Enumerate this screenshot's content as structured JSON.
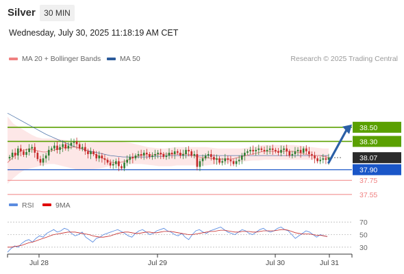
{
  "header": {
    "symbol": "Silver",
    "timeframe": "30 MIN",
    "datetime": "Wednesday, July 30, 2025 11:18:19 AM CET",
    "copyright": "Research © 2025 Trading Central"
  },
  "legend": {
    "price": [
      {
        "label": "MA 20 + Bollinger Bands",
        "color": "#f08080"
      },
      {
        "label": "MA 50",
        "color": "#2b5a9a"
      }
    ],
    "rsi": [
      {
        "label": "RSI",
        "color": "#5b8ce0"
      },
      {
        "label": "9MA",
        "color": "#e00000"
      }
    ]
  },
  "colors": {
    "up_candle": "#2e7d32",
    "down_candle": "#c62828",
    "resistance": "#5aa000",
    "pivot": "#1a56c8",
    "support": "#f08080",
    "last_price": "#2b2b2b",
    "arrow": "#2b5fa6",
    "band_fill": "#fde4e4"
  },
  "chart_data": [
    {
      "type": "candlestick",
      "title": "",
      "instrument": "Silver",
      "timeframe": "30 MIN",
      "x_labels": [
        "Jul 28",
        "Jul 29",
        "Jul 30",
        "Jul 31"
      ],
      "y_range": [
        37.5,
        38.75
      ],
      "grid": false,
      "levels": [
        {
          "value": 38.5,
          "label": "38.50",
          "role": "resistance"
        },
        {
          "value": 38.3,
          "label": "38.30",
          "role": "resistance"
        },
        {
          "value": 37.9,
          "label": "37.90",
          "role": "pivot"
        },
        {
          "value": 37.75,
          "label": "37.75",
          "role": "support"
        },
        {
          "value": 37.55,
          "label": "37.55",
          "role": "support"
        }
      ],
      "last_price": {
        "value": 38.07,
        "label": "38.07"
      },
      "forecast_arrow": {
        "from": 38.0,
        "to": 38.5
      },
      "ohlc_close": [
        38.08,
        38.14,
        38.1,
        38.2,
        38.16,
        38.11,
        38.15,
        38.2,
        38.22,
        38.14,
        38.05,
        38.0,
        38.06,
        38.1,
        38.18,
        38.2,
        38.24,
        38.18,
        38.22,
        38.26,
        38.2,
        38.24,
        38.28,
        38.3,
        38.26,
        38.2,
        38.22,
        38.16,
        38.12,
        38.16,
        38.12,
        38.06,
        38.1,
        38.06,
        38.04,
        38.0,
        37.96,
        37.98,
        38.02,
        37.95,
        37.92,
        38.0,
        38.04,
        38.08,
        38.06,
        38.1,
        38.12,
        38.1,
        38.14,
        38.12,
        38.08,
        38.1,
        38.12,
        38.14,
        38.12,
        38.08,
        38.1,
        38.14,
        38.12,
        38.16,
        38.14,
        38.1,
        38.12,
        38.18,
        38.16,
        38.1,
        38.12,
        37.94,
        38.02,
        38.06,
        38.1,
        38.12,
        38.08,
        38.04,
        38.06,
        38.0,
        38.02,
        38.06,
        38.04,
        38.02,
        37.98,
        38.02,
        38.04,
        38.1,
        38.14,
        38.16,
        38.18,
        38.16,
        38.18,
        38.2,
        38.18,
        38.16,
        38.18,
        38.2,
        38.18,
        38.16,
        38.14,
        38.18,
        38.2,
        38.16,
        38.1,
        38.12,
        38.16,
        38.18,
        38.14,
        38.2,
        38.16,
        38.12,
        38.1,
        38.06,
        38.02,
        38.04,
        38.06,
        38.04,
        38.07
      ],
      "ma20": [
        38.0,
        38.04,
        38.08,
        38.12,
        38.15,
        38.17,
        38.18,
        38.19,
        38.19,
        38.18,
        38.17,
        38.16,
        38.15,
        38.15,
        38.16,
        38.17,
        38.18,
        38.19,
        38.2,
        38.21,
        38.21,
        38.21,
        38.22,
        38.22,
        38.21,
        38.2,
        38.19,
        38.17,
        38.15,
        38.13,
        38.11,
        38.09,
        38.07,
        38.05,
        38.03,
        38.01,
        38.0,
        37.99,
        38.0,
        38.01,
        38.02,
        38.04,
        38.06,
        38.08,
        38.09,
        38.1,
        38.11,
        38.11,
        38.11,
        38.11,
        38.11,
        38.11,
        38.12,
        38.12,
        38.12,
        38.12,
        38.12,
        38.12,
        38.12,
        38.12,
        38.12,
        38.12,
        38.11,
        38.1,
        38.09,
        38.08,
        38.07,
        38.07,
        38.07,
        38.06,
        38.06,
        38.05,
        38.05,
        38.05,
        38.05,
        38.05,
        38.05,
        38.06,
        38.07,
        38.08,
        38.09,
        38.1,
        38.11,
        38.12,
        38.13,
        38.14,
        38.15,
        38.16,
        38.16,
        38.16,
        38.16,
        38.16,
        38.16,
        38.16,
        38.16,
        38.16,
        38.16,
        38.16,
        38.15,
        38.14,
        38.13,
        38.12,
        38.11,
        38.1,
        38.1,
        38.1,
        38.1,
        38.09,
        38.08,
        38.07
      ],
      "ma50": [
        38.7,
        38.65,
        38.6,
        38.55,
        38.5,
        38.45,
        38.4,
        38.36,
        38.32,
        38.28,
        38.24,
        38.21,
        38.18,
        38.16,
        38.14,
        38.12,
        38.1,
        38.09,
        38.08,
        38.08,
        38.08,
        38.08,
        38.08,
        38.09,
        38.09,
        38.1,
        38.1,
        38.1,
        38.1,
        38.1,
        38.1,
        38.1,
        38.1,
        38.1,
        38.1,
        38.1,
        38.1,
        38.1,
        38.1,
        38.1,
        38.1,
        38.1,
        38.1,
        38.1,
        38.1,
        38.1,
        38.1,
        38.1,
        38.1,
        38.1,
        38.1
      ],
      "bb_upper": [
        38.65,
        38.55,
        38.5,
        38.45,
        38.4,
        38.36,
        38.34,
        38.34,
        38.34,
        38.33,
        38.32,
        38.3,
        38.29,
        38.28,
        38.28,
        38.29,
        38.3,
        38.3,
        38.3,
        38.3,
        38.29,
        38.28,
        38.26,
        38.24,
        38.22,
        38.21,
        38.2,
        38.2,
        38.21,
        38.22,
        38.22,
        38.22,
        38.22,
        38.22,
        38.22,
        38.21,
        38.2,
        38.2,
        38.2,
        38.2,
        38.2,
        38.21,
        38.22,
        38.24,
        38.25,
        38.25,
        38.25,
        38.25,
        38.25,
        38.25,
        38.24,
        38.23,
        38.22,
        38.21,
        38.2,
        38.2
      ],
      "bb_lower": [
        37.7,
        37.78,
        37.85,
        37.9,
        37.92,
        37.94,
        37.96,
        37.98,
        37.98,
        37.96,
        37.94,
        37.92,
        37.9,
        37.9,
        37.9,
        37.91,
        37.92,
        37.94,
        37.96,
        37.97,
        37.98,
        37.98,
        37.98,
        37.98,
        37.97,
        37.96,
        37.95,
        37.95,
        37.95,
        37.96,
        37.96,
        37.96,
        37.96,
        37.96,
        37.96,
        37.97,
        37.98,
        37.99,
        38.0,
        38.0,
        38.01,
        38.02,
        38.03,
        38.03,
        38.04,
        38.04,
        38.04,
        38.04,
        38.04,
        38.04,
        38.04,
        38.04,
        38.04,
        38.04,
        38.04,
        38.04
      ]
    },
    {
      "type": "line",
      "title": "",
      "y_ticks": [
        30,
        50,
        70
      ],
      "y_range": [
        20,
        80
      ],
      "series": [
        {
          "name": "RSI",
          "values": [
            22,
            28,
            32,
            30,
            36,
            40,
            42,
            38,
            44,
            48,
            46,
            52,
            55,
            58,
            54,
            56,
            60,
            58,
            52,
            48,
            50,
            54,
            46,
            42,
            38,
            44,
            46,
            50,
            52,
            54,
            56,
            58,
            55,
            52,
            48,
            46,
            52,
            56,
            58,
            54,
            50,
            52,
            56,
            58,
            60,
            56,
            54,
            50,
            48,
            52,
            46,
            42,
            50,
            56,
            58,
            54,
            52,
            56,
            58,
            60,
            62,
            58,
            54,
            52,
            50,
            54,
            58,
            56,
            52,
            50,
            54,
            58,
            60,
            56,
            54,
            56,
            60,
            62,
            58,
            56,
            50,
            44,
            48,
            52,
            56,
            54,
            50,
            46,
            50,
            48,
            47
          ]
        },
        {
          "name": "9MA",
          "values": [
            30,
            30,
            31,
            32,
            33,
            35,
            37,
            38,
            40,
            42,
            44,
            46,
            48,
            50,
            51,
            52,
            53,
            54,
            54,
            54,
            53,
            52,
            51,
            50,
            48,
            47,
            46,
            46,
            47,
            48,
            50,
            52,
            53,
            54,
            54,
            53,
            52,
            52,
            53,
            54,
            54,
            53,
            53,
            54,
            55,
            55,
            55,
            54,
            53,
            52,
            51,
            50,
            50,
            51,
            52,
            53,
            54,
            55,
            55,
            56,
            57,
            57,
            56,
            55,
            54,
            54,
            55,
            55,
            55,
            54,
            54,
            55,
            56,
            56,
            56,
            56,
            57,
            58,
            58,
            57,
            55,
            53,
            52,
            51,
            51,
            51,
            50,
            49,
            49,
            48,
            47
          ]
        }
      ]
    }
  ]
}
